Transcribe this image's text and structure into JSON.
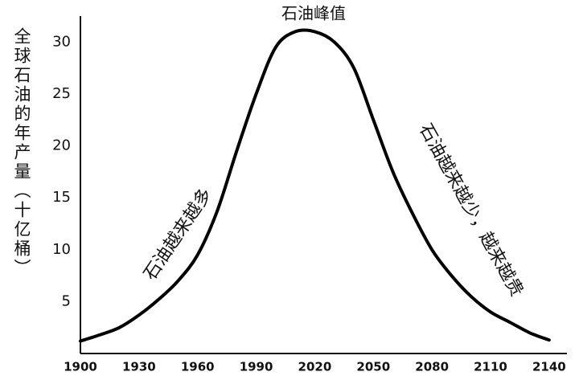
{
  "chart_data": {
    "type": "line",
    "title": "石油峰值",
    "y_label": "全球石油的年产量（十亿桶）",
    "annotations": [
      "石油越来越多",
      "石油越来越少，越来越贵"
    ],
    "x": [
      1900,
      1910,
      1920,
      1930,
      1940,
      1950,
      1960,
      1970,
      1980,
      1990,
      2000,
      2010,
      2020,
      2030,
      2040,
      2050,
      2060,
      2070,
      2080,
      2090,
      2100,
      2110,
      2120,
      2130,
      2140
    ],
    "values": [
      1.2,
      1.8,
      2.5,
      3.7,
      5.2,
      7.0,
      9.5,
      13.7,
      19.5,
      25,
      29.5,
      31,
      31,
      30,
      27.5,
      22.5,
      17.5,
      13.5,
      10,
      7.5,
      5.5,
      4,
      3,
      2,
      1.3
    ],
    "color": "#000000",
    "xlim": [
      1900,
      2145
    ],
    "xticks": [
      1900,
      1930,
      1960,
      1990,
      2020,
      2050,
      2080,
      2110,
      2140
    ],
    "ylim": [
      0,
      32.5
    ],
    "yticks": [
      5,
      10,
      15,
      20,
      25,
      30
    ],
    "grid": false
  }
}
